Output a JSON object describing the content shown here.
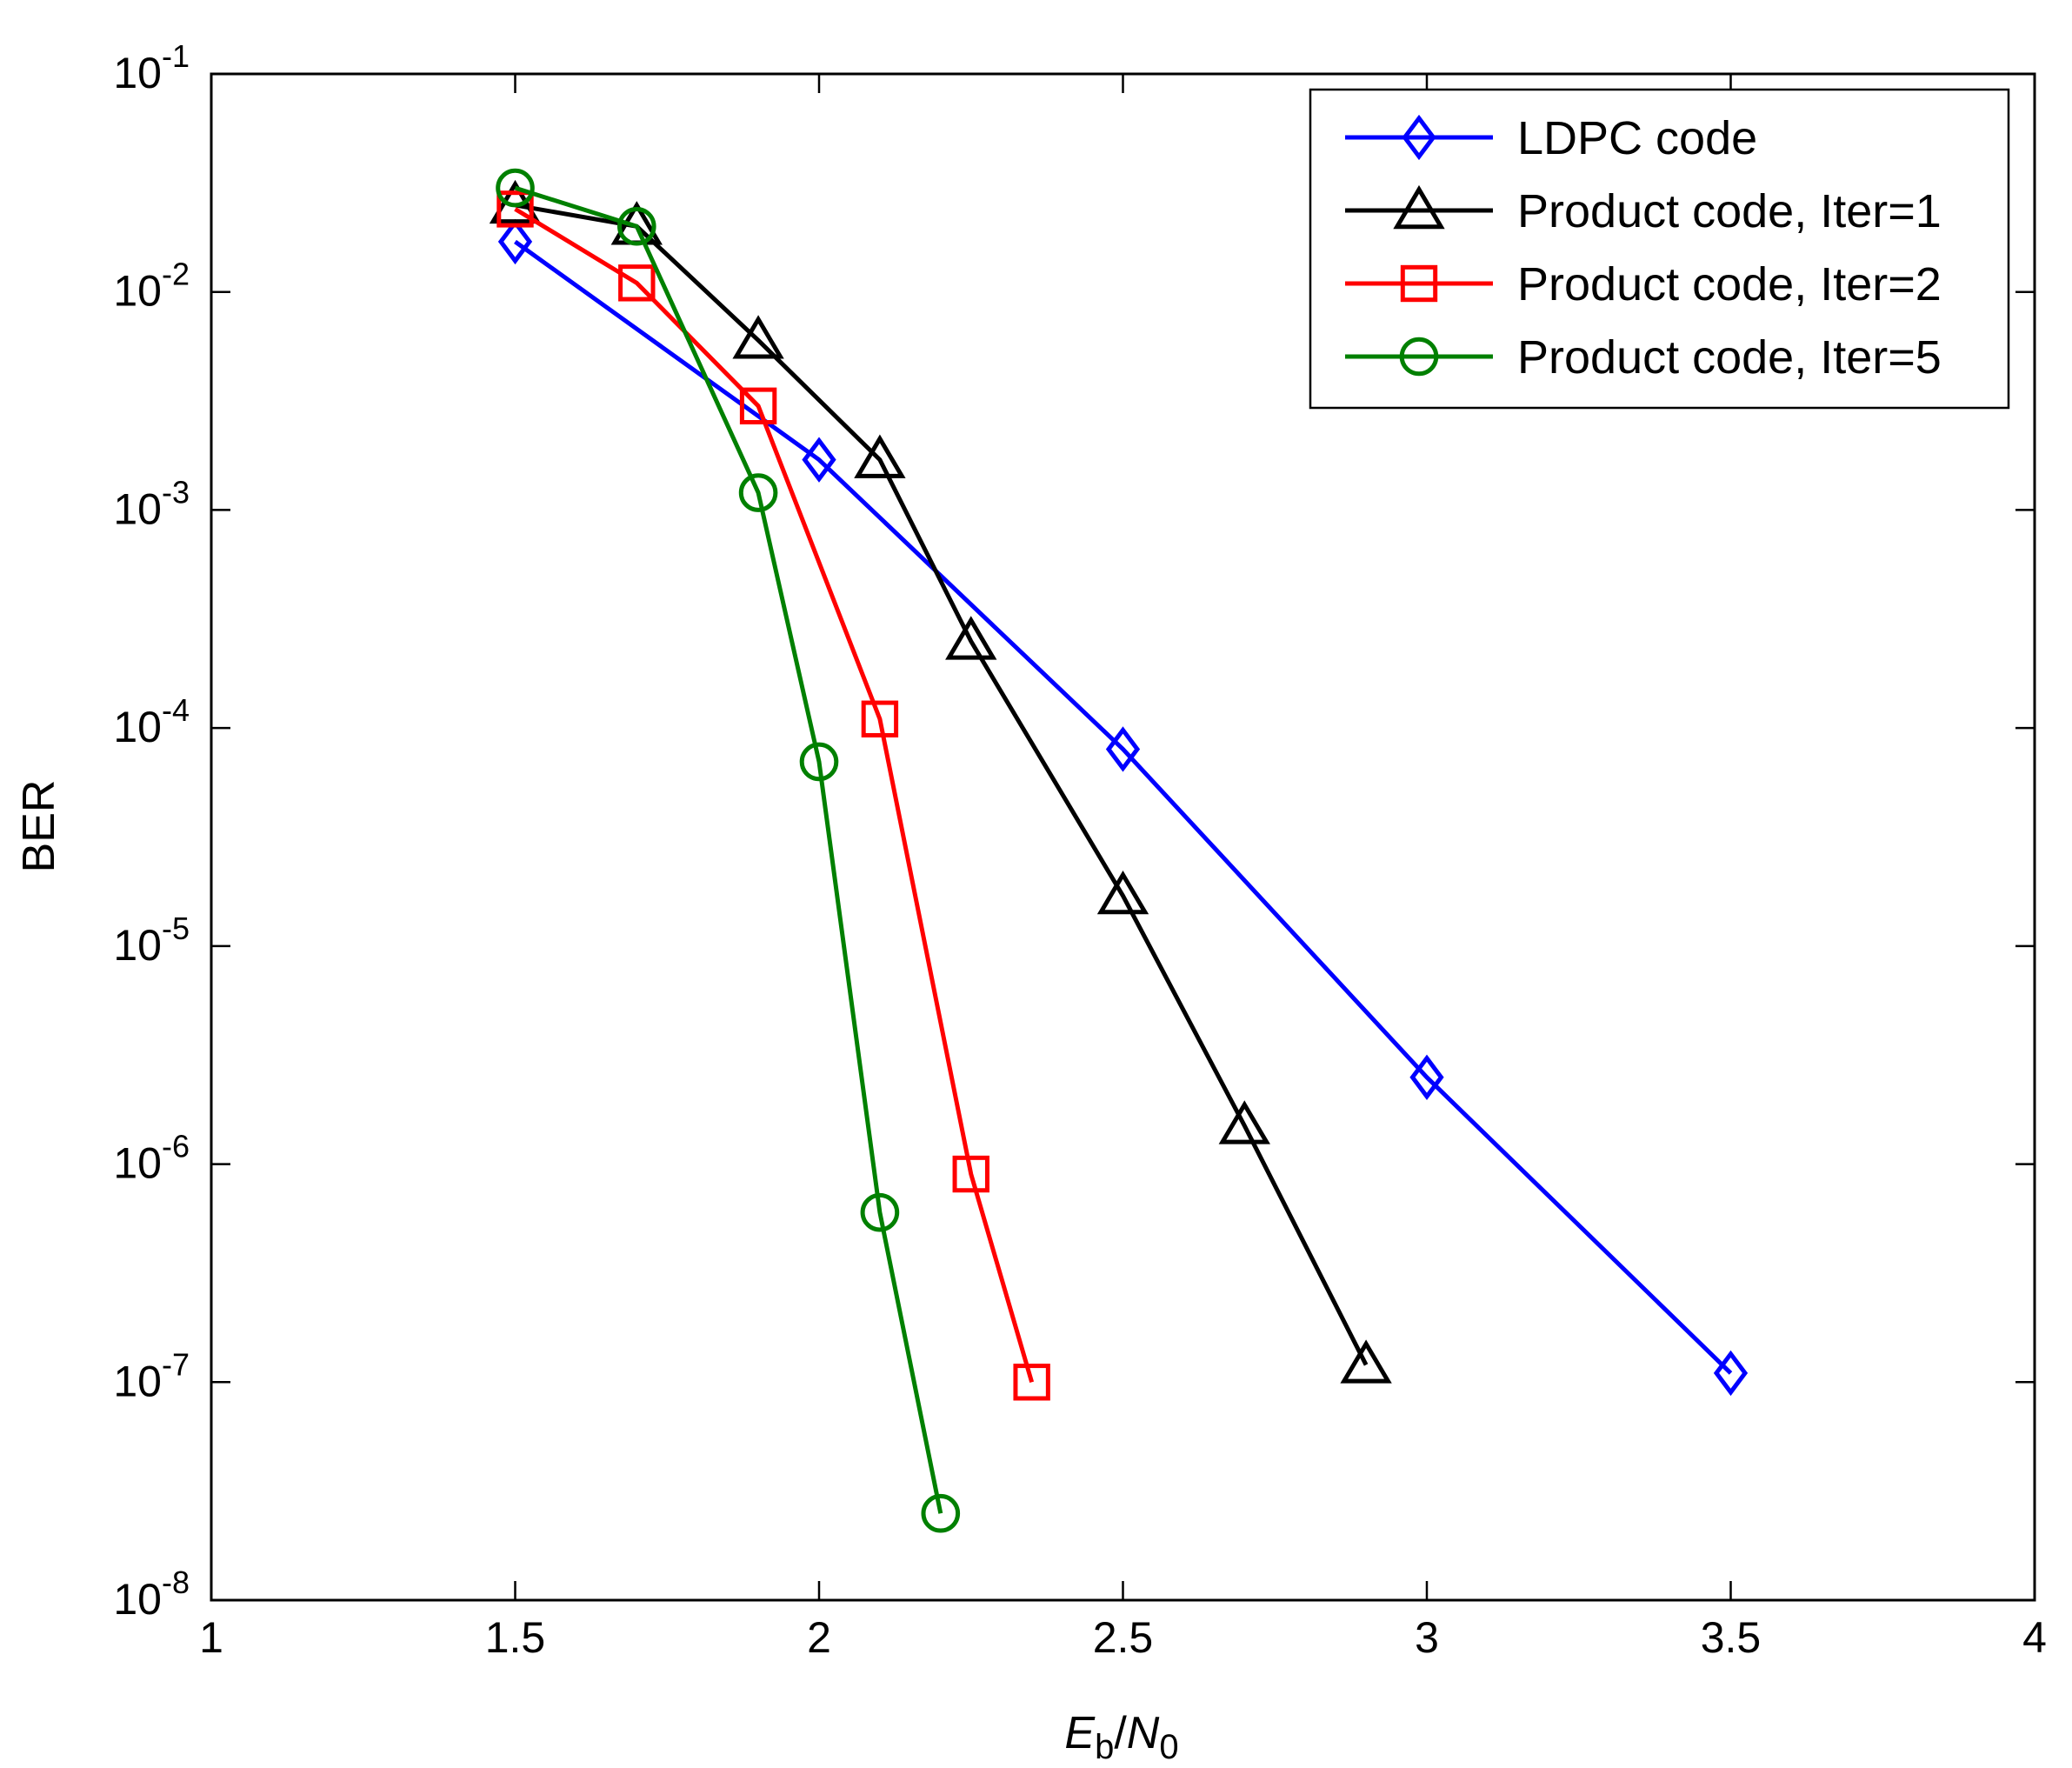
{
  "chart_data": {
    "type": "line",
    "xscale": "linear",
    "yscale": "log",
    "xlim": [
      1,
      4
    ],
    "ylim": [
      1e-08,
      0.1
    ],
    "xticks": [
      1,
      1.5,
      2,
      2.5,
      3,
      3.5,
      4
    ],
    "xtick_labels": [
      "1",
      "1.5",
      "2",
      "2.5",
      "3",
      "3.5",
      "4"
    ],
    "ytick_exponents": [
      -8,
      -7,
      -6,
      -5,
      -4,
      -3,
      -2,
      -1
    ],
    "ytick_base": "10",
    "grid": true,
    "xlabel": {
      "e": "E",
      "e_sub": "b",
      "slash": "/",
      "n": "N",
      "n_sub": "0"
    },
    "ylabel": "BER",
    "legend_position": "top-right",
    "series": [
      {
        "name": "LDPC code",
        "color": "#0000ff",
        "marker": "diamond",
        "x": [
          1.5,
          2.0,
          2.5,
          3.0,
          3.5
        ],
        "y": [
          0.017,
          0.0017,
          8e-05,
          2.5e-06,
          1.1e-07
        ]
      },
      {
        "name": "Product code, Iter=1",
        "color": "#000000",
        "marker": "triangle",
        "x": [
          1.5,
          1.7,
          1.9,
          2.1,
          2.25,
          2.5,
          2.7,
          2.9
        ],
        "y": [
          0.025,
          0.02,
          0.006,
          0.0017,
          0.00025,
          1.7e-05,
          1.5e-06,
          1.2e-07
        ]
      },
      {
        "name": "Product code, Iter=2",
        "color": "#ff0000",
        "marker": "square",
        "x": [
          1.5,
          1.7,
          1.9,
          2.1,
          2.25,
          2.35
        ],
        "y": [
          0.024,
          0.011,
          0.003,
          0.00011,
          9e-07,
          1e-07
        ]
      },
      {
        "name": "Product code, Iter=5",
        "color": "#008000",
        "marker": "circle",
        "x": [
          1.5,
          1.7,
          1.9,
          2.0,
          2.1,
          2.2
        ],
        "y": [
          0.03,
          0.02,
          0.0012,
          7e-05,
          6e-07,
          2.5e-08
        ]
      }
    ]
  }
}
